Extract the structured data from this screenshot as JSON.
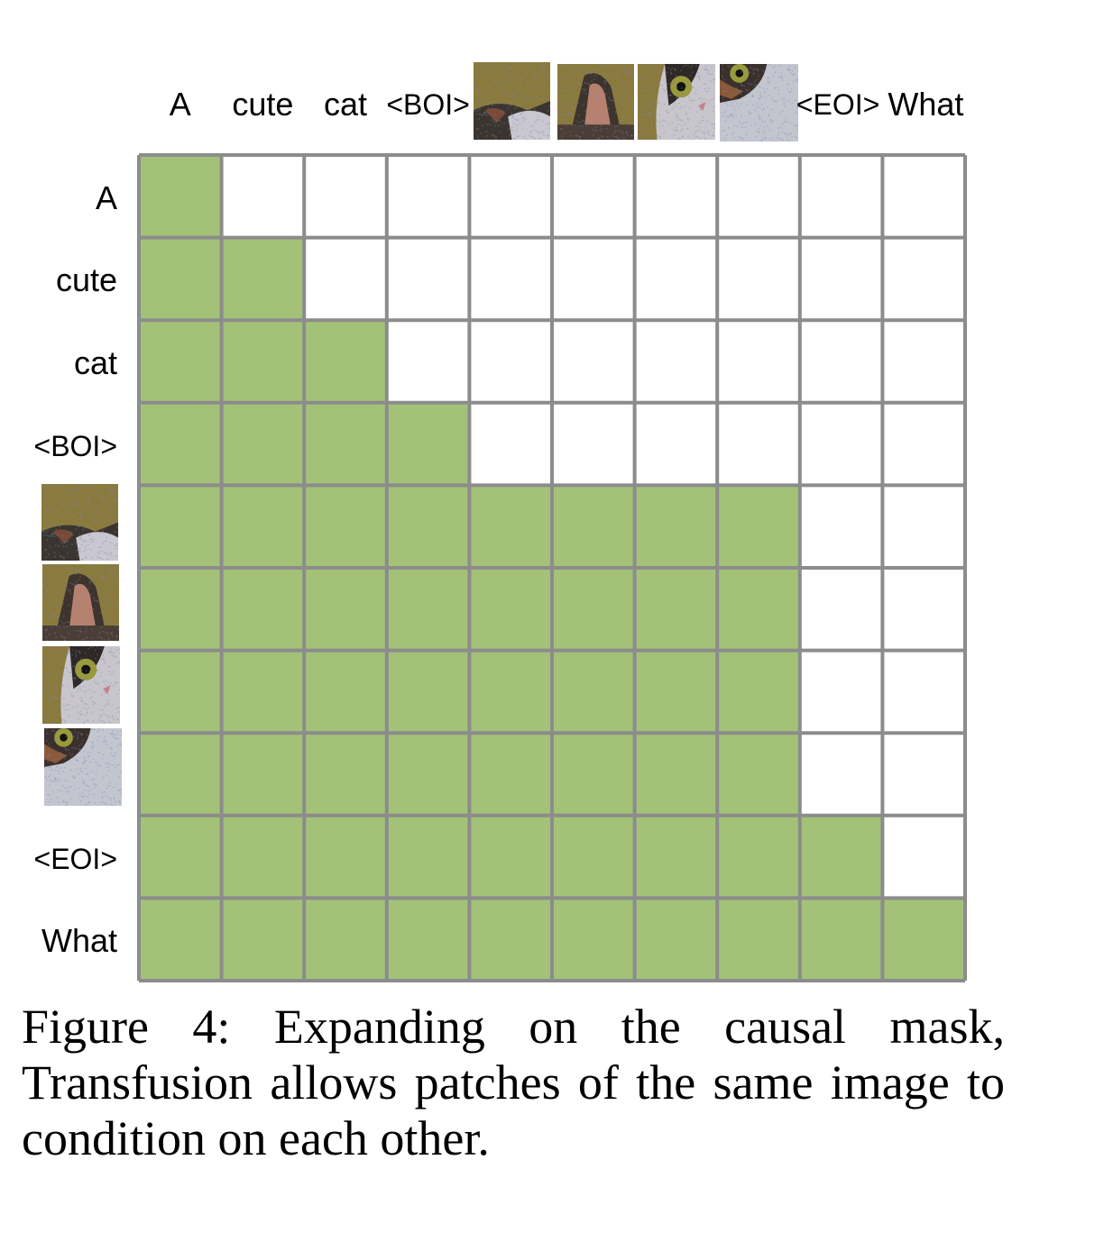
{
  "tokens": [
    {
      "label": "A",
      "kind": "text"
    },
    {
      "label": "cute",
      "kind": "text"
    },
    {
      "label": "cat",
      "kind": "text"
    },
    {
      "label": "<BOI>",
      "kind": "text"
    },
    {
      "label": "",
      "kind": "image-patch",
      "patch": "cat-patch-1"
    },
    {
      "label": "",
      "kind": "image-patch",
      "patch": "cat-patch-2"
    },
    {
      "label": "",
      "kind": "image-patch",
      "patch": "cat-patch-3"
    },
    {
      "label": "",
      "kind": "image-patch",
      "patch": "cat-patch-4"
    },
    {
      "label": "<EOI>",
      "kind": "text"
    },
    {
      "label": "What",
      "kind": "text"
    }
  ],
  "mask": [
    [
      1,
      0,
      0,
      0,
      0,
      0,
      0,
      0,
      0,
      0
    ],
    [
      1,
      1,
      0,
      0,
      0,
      0,
      0,
      0,
      0,
      0
    ],
    [
      1,
      1,
      1,
      0,
      0,
      0,
      0,
      0,
      0,
      0
    ],
    [
      1,
      1,
      1,
      1,
      0,
      0,
      0,
      0,
      0,
      0
    ],
    [
      1,
      1,
      1,
      1,
      1,
      1,
      1,
      1,
      0,
      0
    ],
    [
      1,
      1,
      1,
      1,
      1,
      1,
      1,
      1,
      0,
      0
    ],
    [
      1,
      1,
      1,
      1,
      1,
      1,
      1,
      1,
      0,
      0
    ],
    [
      1,
      1,
      1,
      1,
      1,
      1,
      1,
      1,
      0,
      0
    ],
    [
      1,
      1,
      1,
      1,
      1,
      1,
      1,
      1,
      1,
      0
    ],
    [
      1,
      1,
      1,
      1,
      1,
      1,
      1,
      1,
      1,
      1
    ]
  ],
  "colors": {
    "attend": "#a3c278",
    "masked": "#ffffff",
    "gridline": "#8c8c8c"
  },
  "caption": "Figure 4: Expanding on the causal mask, Transfusion allows patches of the same image to condition on each other."
}
